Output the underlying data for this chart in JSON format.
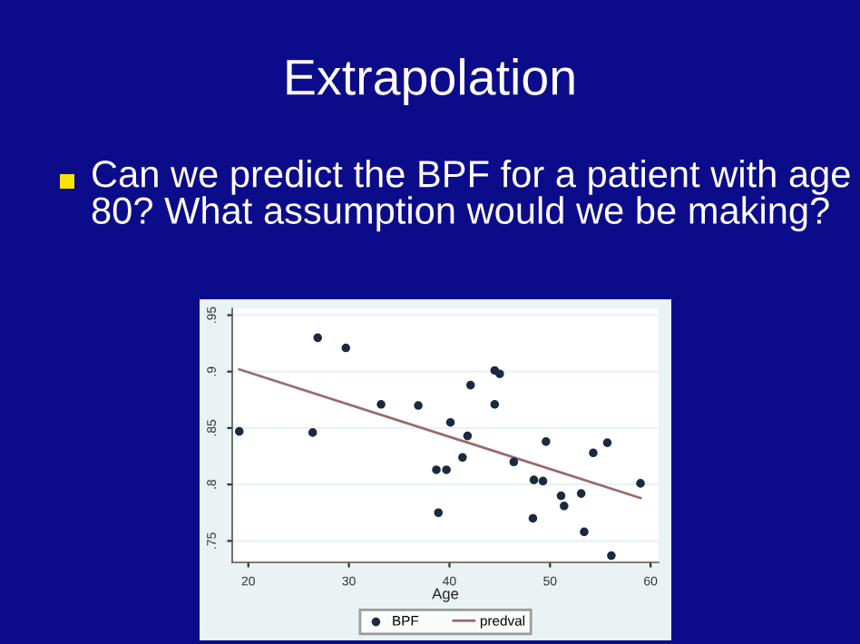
{
  "chart_data": {
    "type": "scatter",
    "title": "Extrapolation",
    "annotations": [
      "Can we predict the BPF for a patient with age 80? What assumption would we be making?"
    ],
    "xlabel": "Age",
    "series": [
      {
        "name": "BPF",
        "color": "#1a2a40",
        "marker": "circle",
        "x": [
          19.1,
          26.9,
          29.7,
          26.4,
          33.2,
          36.9,
          38.7,
          39.7,
          38.9,
          40.1,
          41.3,
          41.8,
          42.1,
          44.5,
          45.0,
          44.5,
          46.4,
          48.4,
          49.3,
          48.3,
          49.6,
          51.1,
          51.4,
          53.1,
          53.4,
          54.3,
          55.7,
          56.1,
          59.0
        ],
        "values": [
          0.847,
          0.93,
          0.921,
          0.846,
          0.871,
          0.87,
          0.813,
          0.813,
          0.775,
          0.855,
          0.824,
          0.843,
          0.888,
          0.901,
          0.898,
          0.871,
          0.82,
          0.804,
          0.803,
          0.77,
          0.838,
          0.79,
          0.781,
          0.792,
          0.758,
          0.828,
          0.837,
          0.737,
          0.801
        ]
      },
      {
        "name": "predval",
        "type": "line",
        "color": "#9a6a6a",
        "marker": "none",
        "line_style": "solid",
        "x": [
          19.1,
          59.0
        ],
        "values": [
          0.902,
          0.788
        ]
      }
    ],
    "xlim": [
      18.4,
      60.8
    ],
    "ylim": [
      0.731,
      0.956
    ],
    "xticks": [
      20,
      30,
      40,
      50,
      60
    ],
    "yticks": [
      {
        "value": 0.75,
        "label": ".75"
      },
      {
        "value": 0.8,
        "label": ".8"
      },
      {
        "value": 0.85,
        "label": ".85"
      },
      {
        "value": 0.9,
        "label": ".9"
      },
      {
        "value": 0.95,
        "label": ".95"
      }
    ],
    "grid": "y",
    "legend": "bottom"
  }
}
